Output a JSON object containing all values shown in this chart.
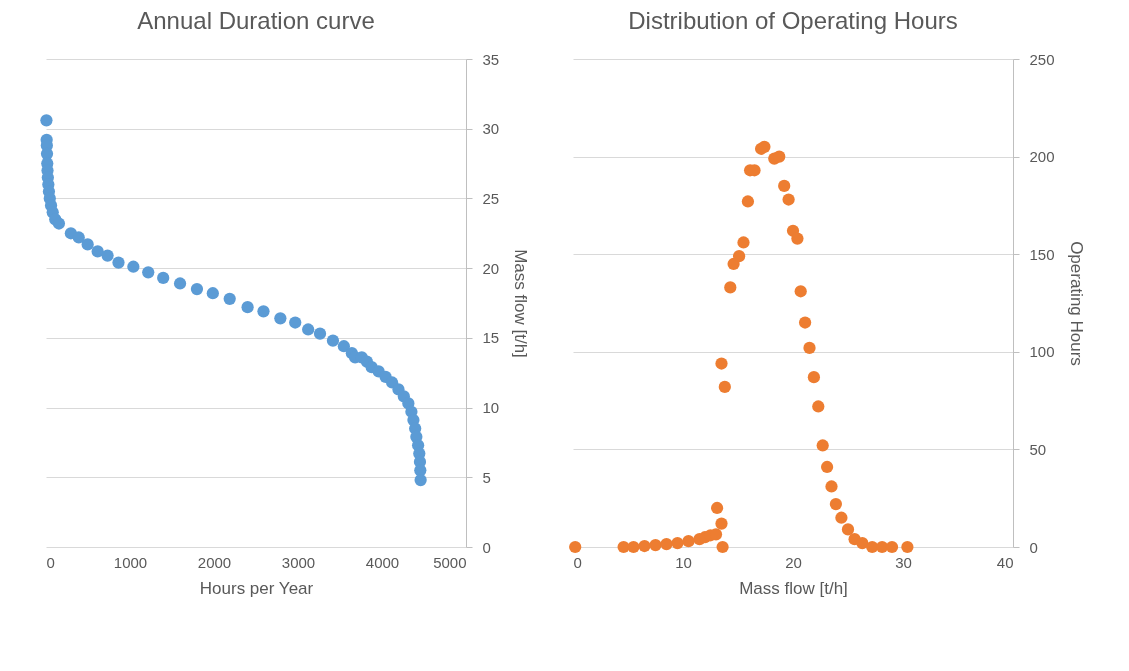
{
  "chart_data": [
    {
      "type": "scatter",
      "title": "Annual Duration curve",
      "xlabel": "Hours per Year",
      "ylabel": "Mass flow [t/h]",
      "x": [
        5,
        8,
        10,
        12,
        15,
        18,
        22,
        28,
        35,
        45,
        60,
        80,
        110,
        154,
        296,
        390,
        496,
        615,
        733,
        863,
        1040,
        1217,
        1395,
        1596,
        1797,
        1986,
        2187,
        2400,
        2589,
        2790,
        2967,
        3121,
        3262,
        3416,
        3546,
        3641,
        3680,
        3759,
        3820,
        3877,
        3960,
        4043,
        4120,
        4196,
        4260,
        4314,
        4350,
        4374,
        4395,
        4409,
        4430,
        4444,
        4452,
        4456,
        4460
      ],
      "series": [
        {
          "color": "#5b9bd5",
          "values": [
            30.6,
            29.2,
            28.8,
            28.2,
            27.5,
            27.0,
            26.5,
            26.0,
            25.5,
            25.0,
            24.5,
            24.0,
            23.5,
            23.2,
            22.5,
            22.2,
            21.7,
            21.2,
            20.9,
            20.4,
            20.1,
            19.7,
            19.3,
            18.9,
            18.5,
            18.2,
            17.8,
            17.2,
            16.9,
            16.4,
            16.1,
            15.6,
            15.3,
            14.8,
            14.4,
            13.9,
            13.6,
            13.6,
            13.3,
            12.9,
            12.6,
            12.2,
            11.8,
            11.3,
            10.8,
            10.3,
            9.7,
            9.1,
            8.5,
            7.9,
            7.3,
            6.7,
            6.1,
            5.5,
            4.8
          ]
        }
      ],
      "xlim": [
        0,
        5000
      ],
      "xticks": [
        0,
        1000,
        2000,
        3000,
        4000,
        5000
      ],
      "ylim": [
        0,
        35
      ],
      "yticks": [
        0,
        5,
        10,
        15,
        20,
        25,
        30,
        35
      ],
      "grid": "y",
      "marker": "circle"
    },
    {
      "type": "scatter",
      "title": "Distribution of Operating Hours",
      "xlabel": "Mass flow [t/h]",
      "ylabel": "Operating Hours",
      "x": [
        0.2,
        4.6,
        5.5,
        6.5,
        7.5,
        8.5,
        9.5,
        10.5,
        11.5,
        12.0,
        12.5,
        13.0,
        13.6,
        13.5,
        13.1,
        13.5,
        13.8,
        14.3,
        14.6,
        15.1,
        15.5,
        15.9,
        16.1,
        16.5,
        17.1,
        17.4,
        18.3,
        18.75,
        19.2,
        19.6,
        20.0,
        20.4,
        20.7,
        21.1,
        21.5,
        21.9,
        22.3,
        22.7,
        23.1,
        23.5,
        23.9,
        24.4,
        25.0,
        25.6,
        26.3,
        27.2,
        28.1,
        29.0,
        30.4
      ],
      "series": [
        {
          "color": "#ed7d31",
          "values": [
            0,
            0,
            0,
            0.5,
            1,
            1.5,
            2,
            3,
            4,
            5,
            6,
            6.5,
            0,
            12,
            20,
            94,
            82,
            133,
            145,
            149,
            156,
            177,
            193,
            193,
            204,
            205,
            199,
            200,
            185,
            178,
            162,
            158,
            131,
            115,
            102,
            87,
            72,
            52,
            41,
            31,
            22,
            15,
            9,
            4,
            2,
            0,
            0,
            0,
            0
          ]
        }
      ],
      "xlim": [
        0,
        40
      ],
      "xticks": [
        0,
        10,
        20,
        30,
        40
      ],
      "ylim": [
        0,
        250
      ],
      "yticks": [
        0,
        50,
        100,
        150,
        200,
        250
      ],
      "grid": "y",
      "marker": "circle"
    }
  ]
}
